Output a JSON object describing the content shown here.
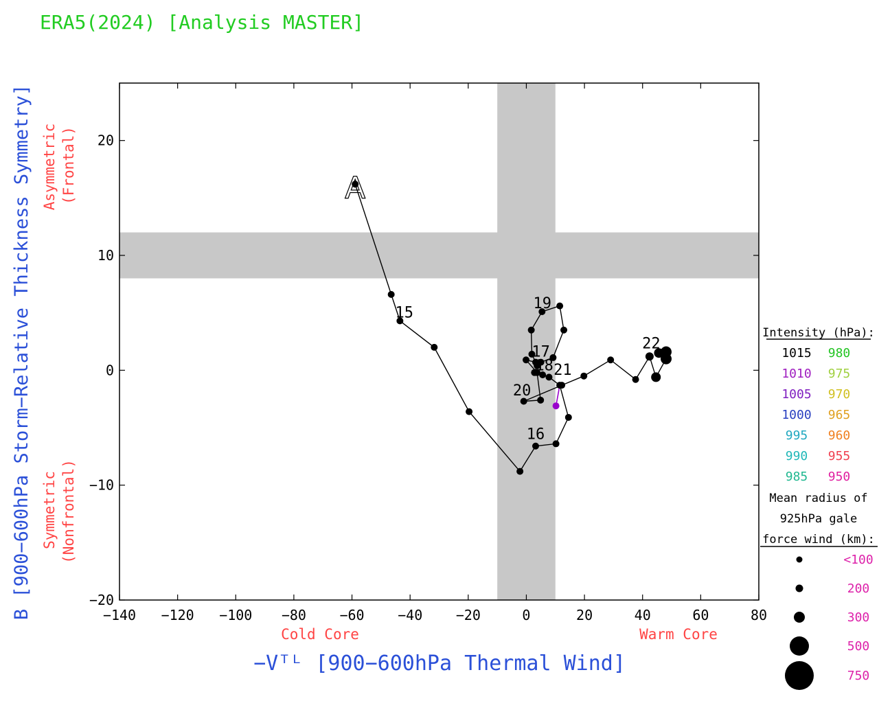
{
  "title": "ERA5(2024) [Analysis MASTER]",
  "chart_data": {
    "type": "scatter",
    "xlabel": "−Vᵀᴸ [900−600hPa Thermal Wind]",
    "ylabel": "B [900−600hPa Storm−Relative Thickness Symmetry]",
    "xlim": [
      -140,
      80
    ],
    "ylim": [
      -20,
      25
    ],
    "xticks": [
      -140,
      -120,
      -100,
      -80,
      -60,
      -40,
      -20,
      0,
      20,
      40,
      60,
      80
    ],
    "yticks": [
      -20,
      -10,
      0,
      10,
      20
    ],
    "xtick_labels": [
      "−140",
      "−120",
      "−100",
      "−80",
      "−60",
      "−40",
      "−20",
      "0",
      "20",
      "40",
      "60",
      "80"
    ],
    "ytick_labels": [
      "−20",
      "−10",
      "0",
      "10",
      "20"
    ],
    "grid": false,
    "shaded_bands": {
      "x_range": [
        -10,
        10
      ],
      "y_range": [
        8,
        12
      ]
    },
    "quadrant_labels": {
      "cold": "Cold Core",
      "warm": "Warm Core",
      "asym_1": "Asymmetric",
      "asym_2": "(Frontal)",
      "sym_1": "Symmetric",
      "sym_2": "(Nonfrontal)"
    },
    "start_marker": "A",
    "track": [
      {
        "x": -58.9,
        "y": 16.2,
        "r": 5
      },
      {
        "x": -46.5,
        "y": 6.6,
        "r": 5
      },
      {
        "x": -43.5,
        "y": 4.3,
        "r": 5
      },
      {
        "x": -31.7,
        "y": 2.0,
        "r": 5
      },
      {
        "x": -19.7,
        "y": -3.6,
        "r": 5
      },
      {
        "x": -2.2,
        "y": -8.8,
        "r": 5
      },
      {
        "x": 3.2,
        "y": -6.6,
        "r": 5
      },
      {
        "x": 10.2,
        "y": -6.4,
        "r": 5
      },
      {
        "x": 14.5,
        "y": -4.1,
        "r": 5
      },
      {
        "x": 11.5,
        "y": -1.3,
        "r": 5
      },
      {
        "x": 7.8,
        "y": -0.6,
        "r": 5
      },
      {
        "x": 5.6,
        "y": -0.4,
        "r": 5
      },
      {
        "x": 2.8,
        "y": -0.2,
        "r": 5
      },
      {
        "x": 3.7,
        "y": 0.4,
        "r": 5
      },
      {
        "x": 5.0,
        "y": 0.7,
        "r": 5
      },
      {
        "x": 9.2,
        "y": 1.1,
        "r": 5
      },
      {
        "x": 12.9,
        "y": 3.5,
        "r": 5
      },
      {
        "x": 11.5,
        "y": 5.6,
        "r": 5
      },
      {
        "x": 5.4,
        "y": 5.1,
        "r": 5
      },
      {
        "x": 1.7,
        "y": 3.5,
        "r": 5
      },
      {
        "x": 1.9,
        "y": 1.4,
        "r": 5
      },
      {
        "x": 3.2,
        "y": 0.7,
        "r": 5
      },
      {
        "x": -0.1,
        "y": 0.9,
        "r": 5
      },
      {
        "x": 3.7,
        "y": -0.2,
        "r": 5
      },
      {
        "x": 4.9,
        "y": -2.6,
        "r": 5
      },
      {
        "x": -0.9,
        "y": -2.7,
        "r": 5
      },
      {
        "x": 12.2,
        "y": -1.3,
        "r": 5
      },
      {
        "x": 19.8,
        "y": -0.5,
        "r": 5
      },
      {
        "x": 29.0,
        "y": 0.9,
        "r": 5
      },
      {
        "x": 37.6,
        "y": -0.8,
        "r": 5
      },
      {
        "x": 42.4,
        "y": 1.2,
        "r": 6
      },
      {
        "x": 44.6,
        "y": -0.6,
        "r": 7
      },
      {
        "x": 48.1,
        "y": 1.0,
        "r": 8
      },
      {
        "x": 48.1,
        "y": 1.6,
        "r": 8
      },
      {
        "x": 45.6,
        "y": 1.5,
        "r": 7
      }
    ],
    "end_segment": {
      "from": {
        "x": 11.5,
        "y": -1.3
      },
      "to": {
        "x": 10.2,
        "y": -3.1
      },
      "color": "#9900cc"
    },
    "day_labels": [
      {
        "text": "15",
        "x": -42.0,
        "y": 4.6
      },
      {
        "text": "16",
        "x": 3.2,
        "y": -6.0
      },
      {
        "text": "17",
        "x": 5.0,
        "y": 1.2
      },
      {
        "text": "18",
        "x": 6.2,
        "y": 0.0
      },
      {
        "text": "19",
        "x": 5.5,
        "y": 5.4
      },
      {
        "text": "20",
        "x": -1.5,
        "y": -2.2
      },
      {
        "text": "21",
        "x": 12.5,
        "y": -0.4
      },
      {
        "text": "22",
        "x": 43.0,
        "y": 1.9
      }
    ],
    "legend": {
      "intensity_title": "Intensity (hPa):",
      "intensity": [
        {
          "value": "1015",
          "color": "#000000"
        },
        {
          "value": "980",
          "color": "#22c422"
        },
        {
          "value": "1010",
          "color": "#a020c0"
        },
        {
          "value": "975",
          "color": "#a0d040"
        },
        {
          "value": "1005",
          "color": "#8020c0"
        },
        {
          "value": "970",
          "color": "#d0c020"
        },
        {
          "value": "1000",
          "color": "#2a40c0"
        },
        {
          "value": "965",
          "color": "#e0a020"
        },
        {
          "value": "995",
          "color": "#20a8c0"
        },
        {
          "value": "960",
          "color": "#f08020"
        },
        {
          "value": "990",
          "color": "#20b8b8"
        },
        {
          "value": "955",
          "color": "#f04050"
        },
        {
          "value": "985",
          "color": "#20b890"
        },
        {
          "value": "950",
          "color": "#e020a0"
        }
      ],
      "radius_title_1": "Mean radius of",
      "radius_title_2": "925hPa gale",
      "radius_title_3": "force wind (km):",
      "radius": [
        {
          "label": "<100",
          "r": 4.5
        },
        {
          "label": "200",
          "r": 5.5
        },
        {
          "label": "300",
          "r": 8
        },
        {
          "label": "500",
          "r": 14
        },
        {
          "label": "750",
          "r": 21
        }
      ]
    }
  },
  "colors": {
    "title": "#22cc22",
    "axis_label": "#2b50d8",
    "quadrant": "#ff4444",
    "band": "#c8c8c8",
    "radius_label": "#dd22aa"
  }
}
